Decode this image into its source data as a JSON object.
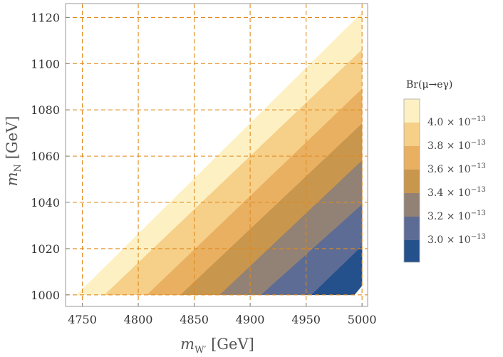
{
  "chart_data": {
    "type": "contour",
    "title": "",
    "xlabel": "m_W′ [GeV]",
    "xlabel_main": "m",
    "xlabel_sub": "W′",
    "xlabel_unit": " [GeV]",
    "ylabel": "m_N [GeV]",
    "ylabel_main": "m",
    "ylabel_sub": "N",
    "ylabel_unit": " [GeV]",
    "xlim": [
      4735,
      5005
    ],
    "ylim": [
      995,
      1126
    ],
    "xticks": [
      4750,
      4800,
      4850,
      4900,
      4950,
      5000
    ],
    "yticks": [
      1000,
      1020,
      1040,
      1060,
      1080,
      1100,
      1120
    ],
    "grid": true,
    "grid_style": "dashed",
    "grid_color": "#e08a1e",
    "legend": {
      "title": "Br(μ→eγ)",
      "placement": "right",
      "entries": [
        {
          "label": "4.0 × 10⁻¹³",
          "mantissa": "4.0",
          "exponent": "−13",
          "color": "#fdf1c4"
        },
        {
          "label": "3.8 × 10⁻¹³",
          "mantissa": "3.8",
          "exponent": "−13",
          "color": "#f6cf88"
        },
        {
          "label": "3.6 × 10⁻¹³",
          "mantissa": "3.6",
          "exponent": "−13",
          "color": "#e9b062"
        },
        {
          "label": "3.4 × 10⁻¹³",
          "mantissa": "3.4",
          "exponent": "−13",
          "color": "#c8964d"
        },
        {
          "label": "3.2 × 10⁻¹³",
          "mantissa": "3.2",
          "exponent": "−13",
          "color": "#928175"
        },
        {
          "label": "3.0 × 10⁻¹³",
          "mantissa": "3.0",
          "exponent": "−13",
          "color": "#5d6c95"
        }
      ],
      "bottom_color": "#24508c"
    },
    "region": {
      "boundary_points": [
        [
          4745,
          1000
        ],
        [
          5000,
          1122
        ]
      ]
    },
    "bands": [
      {
        "color": "#fdf1c4",
        "points": [
          [
            4745,
            1000
          ],
          [
            4770,
            1000
          ],
          [
            5000,
            1106
          ],
          [
            5000,
            1122
          ]
        ]
      },
      {
        "color": "#f6cf88",
        "points": [
          [
            4770,
            1000
          ],
          [
            4808,
            1000
          ],
          [
            5000,
            1089
          ],
          [
            5000,
            1106
          ]
        ]
      },
      {
        "color": "#e9b062",
        "points": [
          [
            4808,
            1000
          ],
          [
            4838,
            1000
          ],
          [
            5000,
            1074
          ],
          [
            5000,
            1089
          ]
        ]
      },
      {
        "color": "#c8964d",
        "points": [
          [
            4838,
            1000
          ],
          [
            4873,
            1000
          ],
          [
            5000,
            1058
          ],
          [
            5000,
            1074
          ]
        ]
      },
      {
        "color": "#928175",
        "points": [
          [
            4873,
            1000
          ],
          [
            4910,
            1000
          ],
          [
            5000,
            1039
          ],
          [
            5000,
            1058
          ]
        ]
      },
      {
        "color": "#5d6c95",
        "points": [
          [
            4910,
            1000
          ],
          [
            4955,
            1000
          ],
          [
            5000,
            1021
          ],
          [
            5000,
            1039
          ]
        ]
      },
      {
        "color": "#24508c",
        "points": [
          [
            4955,
            1000
          ],
          [
            4993,
            1000
          ],
          [
            5000,
            1004
          ],
          [
            5000,
            1021
          ]
        ]
      }
    ]
  }
}
